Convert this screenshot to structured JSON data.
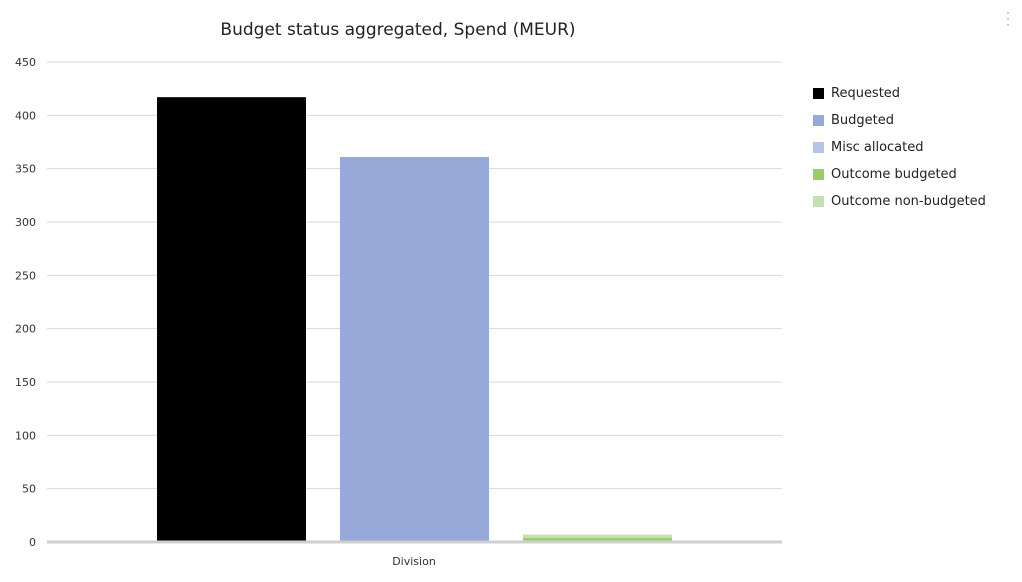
{
  "chart_data": {
    "type": "bar",
    "title": "Budget status aggregated, Spend (MEUR)",
    "categories": [
      "Division"
    ],
    "xlabel": "",
    "ylabel": "",
    "ylim": [
      0,
      450
    ],
    "yticks": [
      "450",
      "400",
      "350",
      "300",
      "250",
      "200",
      "150",
      "100",
      "50",
      "0"
    ],
    "grid": true,
    "legend_position": "right",
    "series": [
      {
        "name": "Requested",
        "values": [
          417
        ],
        "color": "#000000"
      },
      {
        "name": "Budgeted",
        "values": [
          361
        ],
        "color": "#96a9d9"
      },
      {
        "name": "Misc allocated",
        "values": [
          0
        ],
        "color": "#b4c6e7"
      },
      {
        "name": "Outcome budgeted",
        "values": [
          4
        ],
        "color": "#9ccc65"
      },
      {
        "name": "Outcome non-budgeted",
        "values": [
          3
        ],
        "color": "#c5e0b3"
      }
    ]
  },
  "menu_icon": "more-vertical-icon"
}
